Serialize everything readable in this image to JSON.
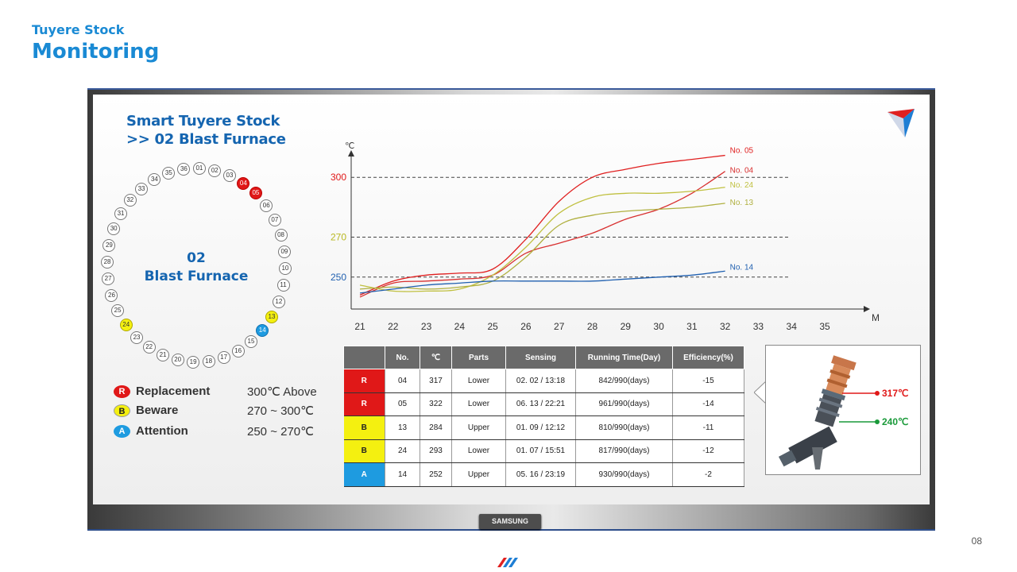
{
  "header": {
    "subtitle": "Tuyere Stock",
    "title": "Monitoring"
  },
  "page_number": "08",
  "monitor_brand": "SAMSUNG",
  "screen_title": {
    "line1": "Smart Tuyere Stock",
    "line2": ">> 02 Blast Furnace"
  },
  "ring": {
    "label_line1": "02",
    "label_line2": "Blast Furnace",
    "tuyeres": [
      {
        "no": "01",
        "status": "normal"
      },
      {
        "no": "02",
        "status": "normal"
      },
      {
        "no": "03",
        "status": "normal"
      },
      {
        "no": "04",
        "status": "red"
      },
      {
        "no": "05",
        "status": "red"
      },
      {
        "no": "06",
        "status": "normal"
      },
      {
        "no": "07",
        "status": "normal"
      },
      {
        "no": "08",
        "status": "normal"
      },
      {
        "no": "09",
        "status": "normal"
      },
      {
        "no": "10",
        "status": "normal"
      },
      {
        "no": "11",
        "status": "normal"
      },
      {
        "no": "12",
        "status": "normal"
      },
      {
        "no": "13",
        "status": "yellow"
      },
      {
        "no": "14",
        "status": "blue"
      },
      {
        "no": "15",
        "status": "normal"
      },
      {
        "no": "16",
        "status": "normal"
      },
      {
        "no": "17",
        "status": "normal"
      },
      {
        "no": "18",
        "status": "normal"
      },
      {
        "no": "19",
        "status": "normal"
      },
      {
        "no": "20",
        "status": "normal"
      },
      {
        "no": "21",
        "status": "normal"
      },
      {
        "no": "22",
        "status": "normal"
      },
      {
        "no": "23",
        "status": "normal"
      },
      {
        "no": "24",
        "status": "yellow"
      },
      {
        "no": "25",
        "status": "normal"
      },
      {
        "no": "26",
        "status": "normal"
      },
      {
        "no": "27",
        "status": "normal"
      },
      {
        "no": "28",
        "status": "normal"
      },
      {
        "no": "29",
        "status": "normal"
      },
      {
        "no": "30",
        "status": "normal"
      },
      {
        "no": "31",
        "status": "normal"
      },
      {
        "no": "32",
        "status": "normal"
      },
      {
        "no": "33",
        "status": "normal"
      },
      {
        "no": "34",
        "status": "normal"
      },
      {
        "no": "35",
        "status": "normal"
      },
      {
        "no": "36",
        "status": "normal"
      }
    ]
  },
  "legend": [
    {
      "badge": "R",
      "name": "Replacement",
      "range": "300℃ Above",
      "color": "#e01818"
    },
    {
      "badge": "B",
      "name": "Beware",
      "range": "270 ~ 300℃",
      "color": "#f4f010"
    },
    {
      "badge": "A",
      "name": "Attention",
      "range": "250 ~ 270℃",
      "color": "#1e9be0"
    }
  ],
  "chart_data": {
    "type": "line",
    "ylabel": "℃",
    "xlabel": "M",
    "x": [
      21,
      22,
      23,
      24,
      25,
      26,
      27,
      28,
      29,
      30,
      31,
      32
    ],
    "x_ticks": [
      "21",
      "22",
      "23",
      "24",
      "25",
      "26",
      "27",
      "28",
      "29",
      "30",
      "31",
      "32",
      "33",
      "34",
      "35"
    ],
    "xlim": [
      21,
      35
    ],
    "ylim": [
      234,
      316
    ],
    "reference_lines": [
      {
        "value": 300,
        "label": "300",
        "color": "#e01818"
      },
      {
        "value": 270,
        "label": "270",
        "color": "#b8b820"
      },
      {
        "value": 250,
        "label": "250",
        "color": "#2060b0"
      }
    ],
    "grid": false,
    "series": [
      {
        "name": "No. 05",
        "color": "#e02020",
        "values": [
          241,
          248,
          251,
          252,
          254,
          269,
          288,
          300,
          304,
          307,
          309,
          311
        ]
      },
      {
        "name": "No. 04",
        "color": "#d83030",
        "values": [
          240,
          247,
          248,
          249,
          251,
          262,
          267,
          272,
          279,
          284,
          292,
          303
        ]
      },
      {
        "name": "No. 24",
        "color": "#c0c040",
        "values": [
          246,
          243,
          243,
          244,
          251,
          265,
          282,
          290,
          292,
          292,
          293,
          295
        ]
      },
      {
        "name": "No. 13",
        "color": "#b0b040",
        "values": [
          244,
          245,
          244,
          245,
          248,
          260,
          276,
          281,
          283,
          284,
          285,
          287
        ]
      },
      {
        "name": "No. 14",
        "color": "#2060b0",
        "values": [
          242,
          244,
          246,
          247,
          248,
          248,
          248,
          248,
          249,
          250,
          251,
          253
        ]
      }
    ]
  },
  "table": {
    "headers": [
      "",
      "No.",
      "℃",
      "Parts",
      "Sensing",
      "Running Time(Day)",
      "Efficiency(%)"
    ],
    "rows": [
      {
        "status": "R",
        "color": "#e01818",
        "no": "04",
        "temp": "317",
        "part": "Lower",
        "sensing": "02. 02 / 13:18",
        "running": "842/990(days)",
        "eff": "-15"
      },
      {
        "status": "R",
        "color": "#e01818",
        "no": "05",
        "temp": "322",
        "part": "Lower",
        "sensing": "06. 13 / 22:21",
        "running": "961/990(days)",
        "eff": "-14"
      },
      {
        "status": "B",
        "color": "#f4f010",
        "no": "13",
        "temp": "284",
        "part": "Upper",
        "sensing": "01. 09 / 12:12",
        "running": "810/990(days)",
        "eff": "-11"
      },
      {
        "status": "B",
        "color": "#f4f010",
        "no": "24",
        "temp": "293",
        "part": "Lower",
        "sensing": "01. 07 / 15:51",
        "running": "817/990(days)",
        "eff": "-12"
      },
      {
        "status": "A",
        "color": "#1e9be0",
        "no": "14",
        "temp": "252",
        "part": "Upper",
        "sensing": "05. 16 / 23:19",
        "running": "930/990(days)",
        "eff": "-2"
      }
    ]
  },
  "callout": {
    "upper_temp": "317℃",
    "upper_color": "#e01818",
    "lower_temp": "240℃",
    "lower_color": "#1a9a3a"
  }
}
